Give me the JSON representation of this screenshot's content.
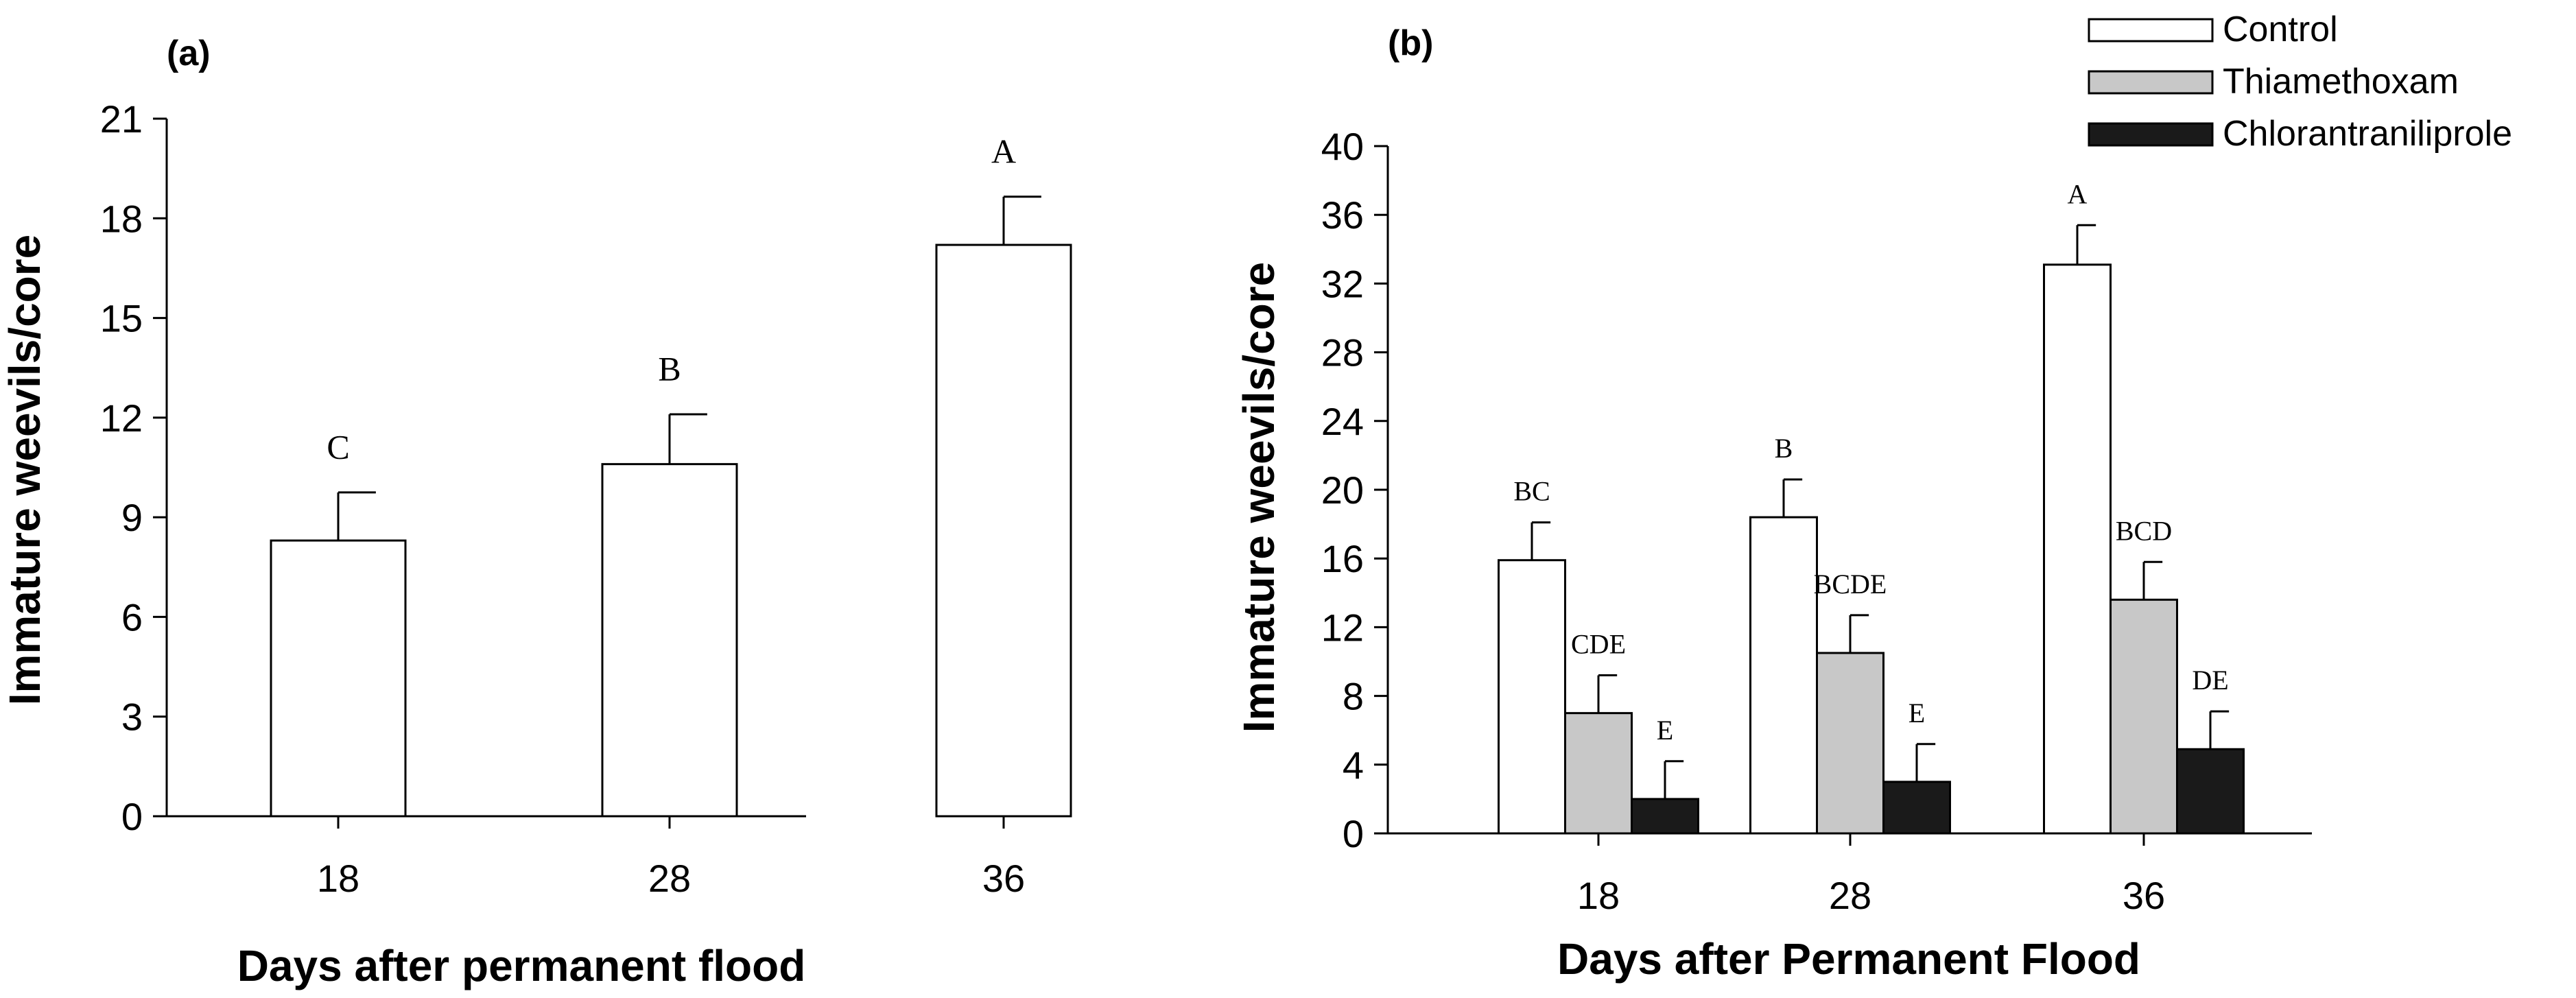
{
  "chart_data": [
    {
      "panel": "(a)",
      "type": "bar",
      "title": "",
      "xlabel": "Days after permanent flood",
      "ylabel": "Immature weevils/core",
      "categories": [
        "18",
        "28",
        "36"
      ],
      "ylim": [
        0,
        21
      ],
      "yticks": [
        "0",
        "3",
        "6",
        "9",
        "12",
        "15",
        "18",
        "21"
      ],
      "series": [
        {
          "name": "Control",
          "color": "#ffffff",
          "values": [
            8.3,
            10.6,
            17.2
          ],
          "errors": [
            1.45,
            1.5,
            1.45
          ],
          "letters": [
            "C",
            "B",
            "A"
          ]
        }
      ]
    },
    {
      "panel": "(b)",
      "type": "bar",
      "title": "",
      "xlabel": "Days after Permanent Flood",
      "ylabel": "Immature weevils/core",
      "categories": [
        "18",
        "28",
        "36"
      ],
      "ylim": [
        0,
        40
      ],
      "yticks": [
        "0",
        "4",
        "8",
        "12",
        "16",
        "20",
        "24",
        "28",
        "32",
        "36",
        "40"
      ],
      "legend_position": "top-right",
      "series": [
        {
          "name": "Control",
          "color": "#ffffff",
          "values": [
            15.9,
            18.4,
            33.1
          ],
          "errors": [
            2.2,
            2.2,
            2.3
          ],
          "letters": [
            "BC",
            "B",
            "A"
          ]
        },
        {
          "name": "Thiamethoxam",
          "color": "#c8c8c8",
          "values": [
            7.0,
            10.5,
            13.6
          ],
          "errors": [
            2.2,
            2.2,
            2.2
          ],
          "letters": [
            "CDE",
            "BCDE",
            "BCD"
          ]
        },
        {
          "name": "Chlorantraniliprole",
          "color": "#1a1a1a",
          "values": [
            2.0,
            3.0,
            4.9
          ],
          "errors": [
            2.2,
            2.2,
            2.2
          ],
          "letters": [
            "E",
            "E",
            "DE"
          ]
        }
      ]
    }
  ]
}
